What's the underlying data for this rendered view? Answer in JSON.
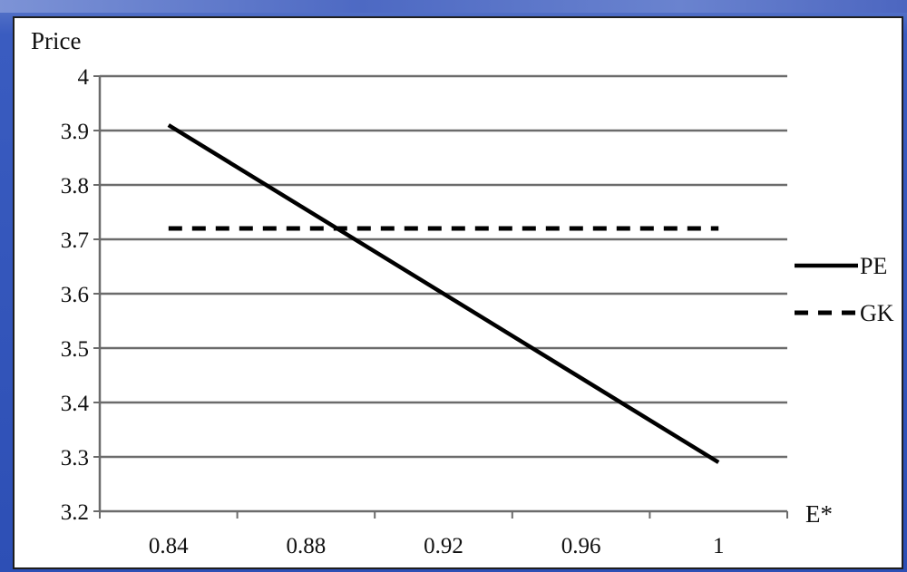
{
  "chart_data": {
    "type": "line",
    "ylabel": "Price",
    "xlabel": "E*",
    "ylim": [
      3.2,
      4.0
    ],
    "y_ticks": [
      3.2,
      3.3,
      3.4,
      3.5,
      3.6,
      3.7,
      3.8,
      3.9,
      4.0
    ],
    "y_tick_labels": [
      "3.2",
      "3.3",
      "3.4",
      "3.5",
      "3.6",
      "3.7",
      "3.8",
      "3.9",
      "4"
    ],
    "x_categories": [
      "0.84",
      "0.88",
      "0.92",
      "0.96",
      "1"
    ],
    "grid": true,
    "legend_position": "right",
    "series": [
      {
        "name": "PE",
        "style": "solid",
        "color": "#000000",
        "x": [
          0.84,
          1.0
        ],
        "y": [
          3.91,
          3.29
        ]
      },
      {
        "name": "GK",
        "style": "dashed",
        "color": "#000000",
        "x": [
          0.84,
          1.0
        ],
        "y": [
          3.72,
          3.72
        ]
      }
    ]
  }
}
